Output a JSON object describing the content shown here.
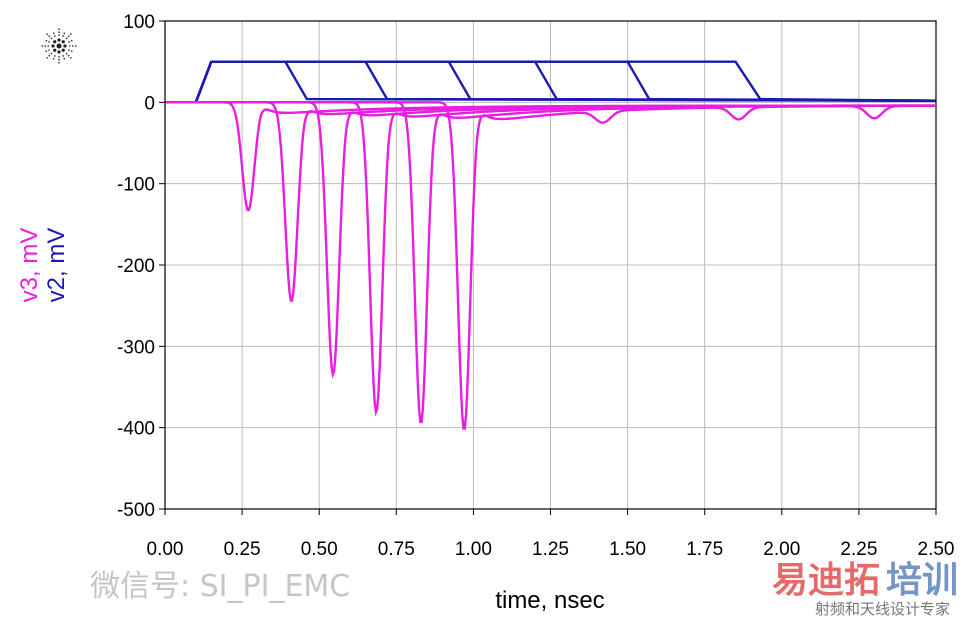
{
  "chart_data": {
    "type": "line",
    "xlabel": "time, nsec",
    "ylabel_series": [
      {
        "text": "v3, mV",
        "color": "#e81ee0"
      },
      {
        "text": "v2, mV",
        "color": "#1a1ab0"
      }
    ],
    "xlim": [
      0,
      2.5
    ],
    "ylim": [
      -500,
      100
    ],
    "xticks": [
      "0.00",
      "0.25",
      "0.50",
      "0.75",
      "1.00",
      "1.25",
      "1.50",
      "1.75",
      "2.00",
      "2.25",
      "2.50"
    ],
    "xtick_values": [
      0,
      0.25,
      0.5,
      0.75,
      1,
      1.25,
      1.5,
      1.75,
      2,
      2.25,
      2.5
    ],
    "yticks": [
      "100",
      "0",
      "-100",
      "-200",
      "-300",
      "-400",
      "-500"
    ],
    "ytick_values": [
      100,
      0,
      -100,
      -200,
      -300,
      -400,
      -500
    ],
    "grid": true,
    "series": [
      {
        "name": "v2",
        "color": "#1a1ab0",
        "traces": [
          [
            [
              0,
              0
            ],
            [
              0.1,
              0
            ],
            [
              0.15,
              50
            ],
            [
              0.39,
              50
            ],
            [
              0.46,
              4
            ],
            [
              2.5,
              2
            ]
          ],
          [
            [
              0,
              0
            ],
            [
              0.1,
              0
            ],
            [
              0.15,
              50
            ],
            [
              0.65,
              50
            ],
            [
              0.72,
              4
            ],
            [
              2.5,
              2
            ]
          ],
          [
            [
              0,
              0
            ],
            [
              0.1,
              0
            ],
            [
              0.15,
              50
            ],
            [
              0.92,
              50
            ],
            [
              0.99,
              4
            ],
            [
              2.5,
              2
            ]
          ],
          [
            [
              0,
              0
            ],
            [
              0.1,
              0
            ],
            [
              0.15,
              50
            ],
            [
              1.2,
              50
            ],
            [
              1.27,
              4
            ],
            [
              2.5,
              2
            ]
          ],
          [
            [
              0,
              0
            ],
            [
              0.1,
              0
            ],
            [
              0.15,
              50
            ],
            [
              1.5,
              50
            ],
            [
              1.57,
              4
            ],
            [
              2.5,
              2
            ]
          ],
          [
            [
              0,
              0
            ],
            [
              0.1,
              0
            ],
            [
              0.15,
              50
            ],
            [
              1.85,
              50
            ],
            [
              1.93,
              4
            ],
            [
              2.5,
              2
            ]
          ]
        ]
      },
      {
        "name": "v3",
        "color": "#e81ee0",
        "traces": [
          {
            "center": 0.27,
            "min": -133
          },
          {
            "center": 0.41,
            "min": -245
          },
          {
            "center": 0.545,
            "min": -335
          },
          {
            "center": 0.685,
            "min": -381
          },
          {
            "center": 0.83,
            "min": -395
          },
          {
            "center": 0.97,
            "min": -403
          }
        ],
        "reflections": [
          {
            "t": 1.42,
            "v": -18
          },
          {
            "t": 1.86,
            "v": -19
          },
          {
            "t": 2.3,
            "v": -19
          }
        ]
      }
    ]
  },
  "watermark": {
    "wechat": "微信号: SI_PI_EMC",
    "brand_red": "易迪拓",
    "brand_blue": "培训",
    "tagline": "射频和天线设计专家"
  }
}
